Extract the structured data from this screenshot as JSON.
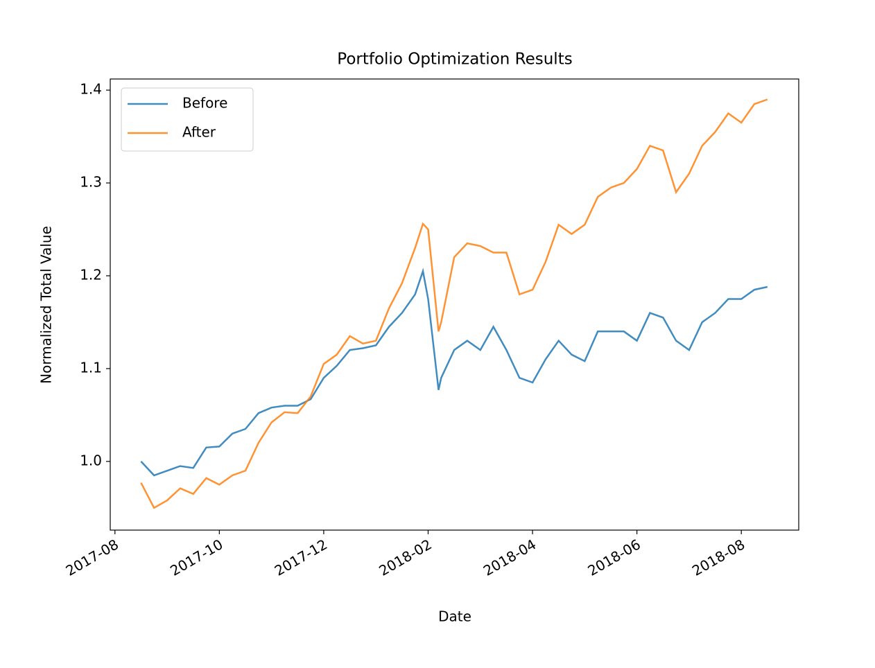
{
  "chart_data": {
    "type": "line",
    "title": "Portfolio Optimization Results",
    "xlabel": "Date",
    "ylabel": "Normalized Total Value",
    "x": [
      0.5,
      0.75,
      1.0,
      1.25,
      1.5,
      1.75,
      2.0,
      2.25,
      2.5,
      2.75,
      3.0,
      3.25,
      3.5,
      3.75,
      4.0,
      4.25,
      4.5,
      4.75,
      5.0,
      5.25,
      5.5,
      5.75,
      5.9,
      6.0,
      6.2,
      6.25,
      6.5,
      6.75,
      7.0,
      7.25,
      7.5,
      7.75,
      8.0,
      8.25,
      8.5,
      8.75,
      9.0,
      9.25,
      9.5,
      9.75,
      10.0,
      10.25,
      10.5,
      10.75,
      11.0,
      11.25,
      11.5,
      11.75,
      12.0,
      12.25,
      12.5
    ],
    "series": [
      {
        "name": "Before",
        "color": "#1f77b4",
        "values": [
          1.0,
          0.985,
          0.99,
          0.995,
          0.993,
          1.015,
          1.016,
          1.03,
          1.035,
          1.052,
          1.058,
          1.06,
          1.06,
          1.067,
          1.09,
          1.103,
          1.12,
          1.122,
          1.125,
          1.145,
          1.16,
          1.18,
          1.205,
          1.175,
          1.077,
          1.09,
          1.12,
          1.13,
          1.12,
          1.145,
          1.12,
          1.09,
          1.085,
          1.11,
          1.13,
          1.115,
          1.108,
          1.14,
          1.14,
          1.14,
          1.13,
          1.16,
          1.155,
          1.13,
          1.12,
          1.15,
          1.16,
          1.175,
          1.175,
          1.185,
          1.188
        ]
      },
      {
        "name": "After",
        "color": "#ff7f0e",
        "values": [
          0.977,
          0.95,
          0.958,
          0.971,
          0.965,
          0.982,
          0.975,
          0.985,
          0.99,
          1.02,
          1.042,
          1.053,
          1.052,
          1.07,
          1.105,
          1.115,
          1.135,
          1.127,
          1.13,
          1.165,
          1.192,
          1.23,
          1.256,
          1.25,
          1.14,
          1.15,
          1.22,
          1.235,
          1.232,
          1.225,
          1.225,
          1.18,
          1.185,
          1.215,
          1.255,
          1.245,
          1.255,
          1.285,
          1.295,
          1.3,
          1.315,
          1.34,
          1.335,
          1.29,
          1.31,
          1.34,
          1.355,
          1.375,
          1.365,
          1.385,
          1.39
        ]
      }
    ],
    "xlim": [
      -0.09,
      13.1
    ],
    "xticks": [
      {
        "value": 0,
        "label": "2017-08"
      },
      {
        "value": 2,
        "label": "2017-10"
      },
      {
        "value": 4,
        "label": "2017-12"
      },
      {
        "value": 6,
        "label": "2018-02"
      },
      {
        "value": 8,
        "label": "2018-04"
      },
      {
        "value": 10,
        "label": "2018-06"
      },
      {
        "value": 12,
        "label": "2018-08"
      }
    ],
    "ylim": [
      0.926,
      1.412
    ],
    "yticks": [
      {
        "value": 1.0,
        "label": "1.0"
      },
      1.1,
      1.2,
      1.3,
      1.4
    ],
    "legend": "upper left",
    "grid": false
  }
}
